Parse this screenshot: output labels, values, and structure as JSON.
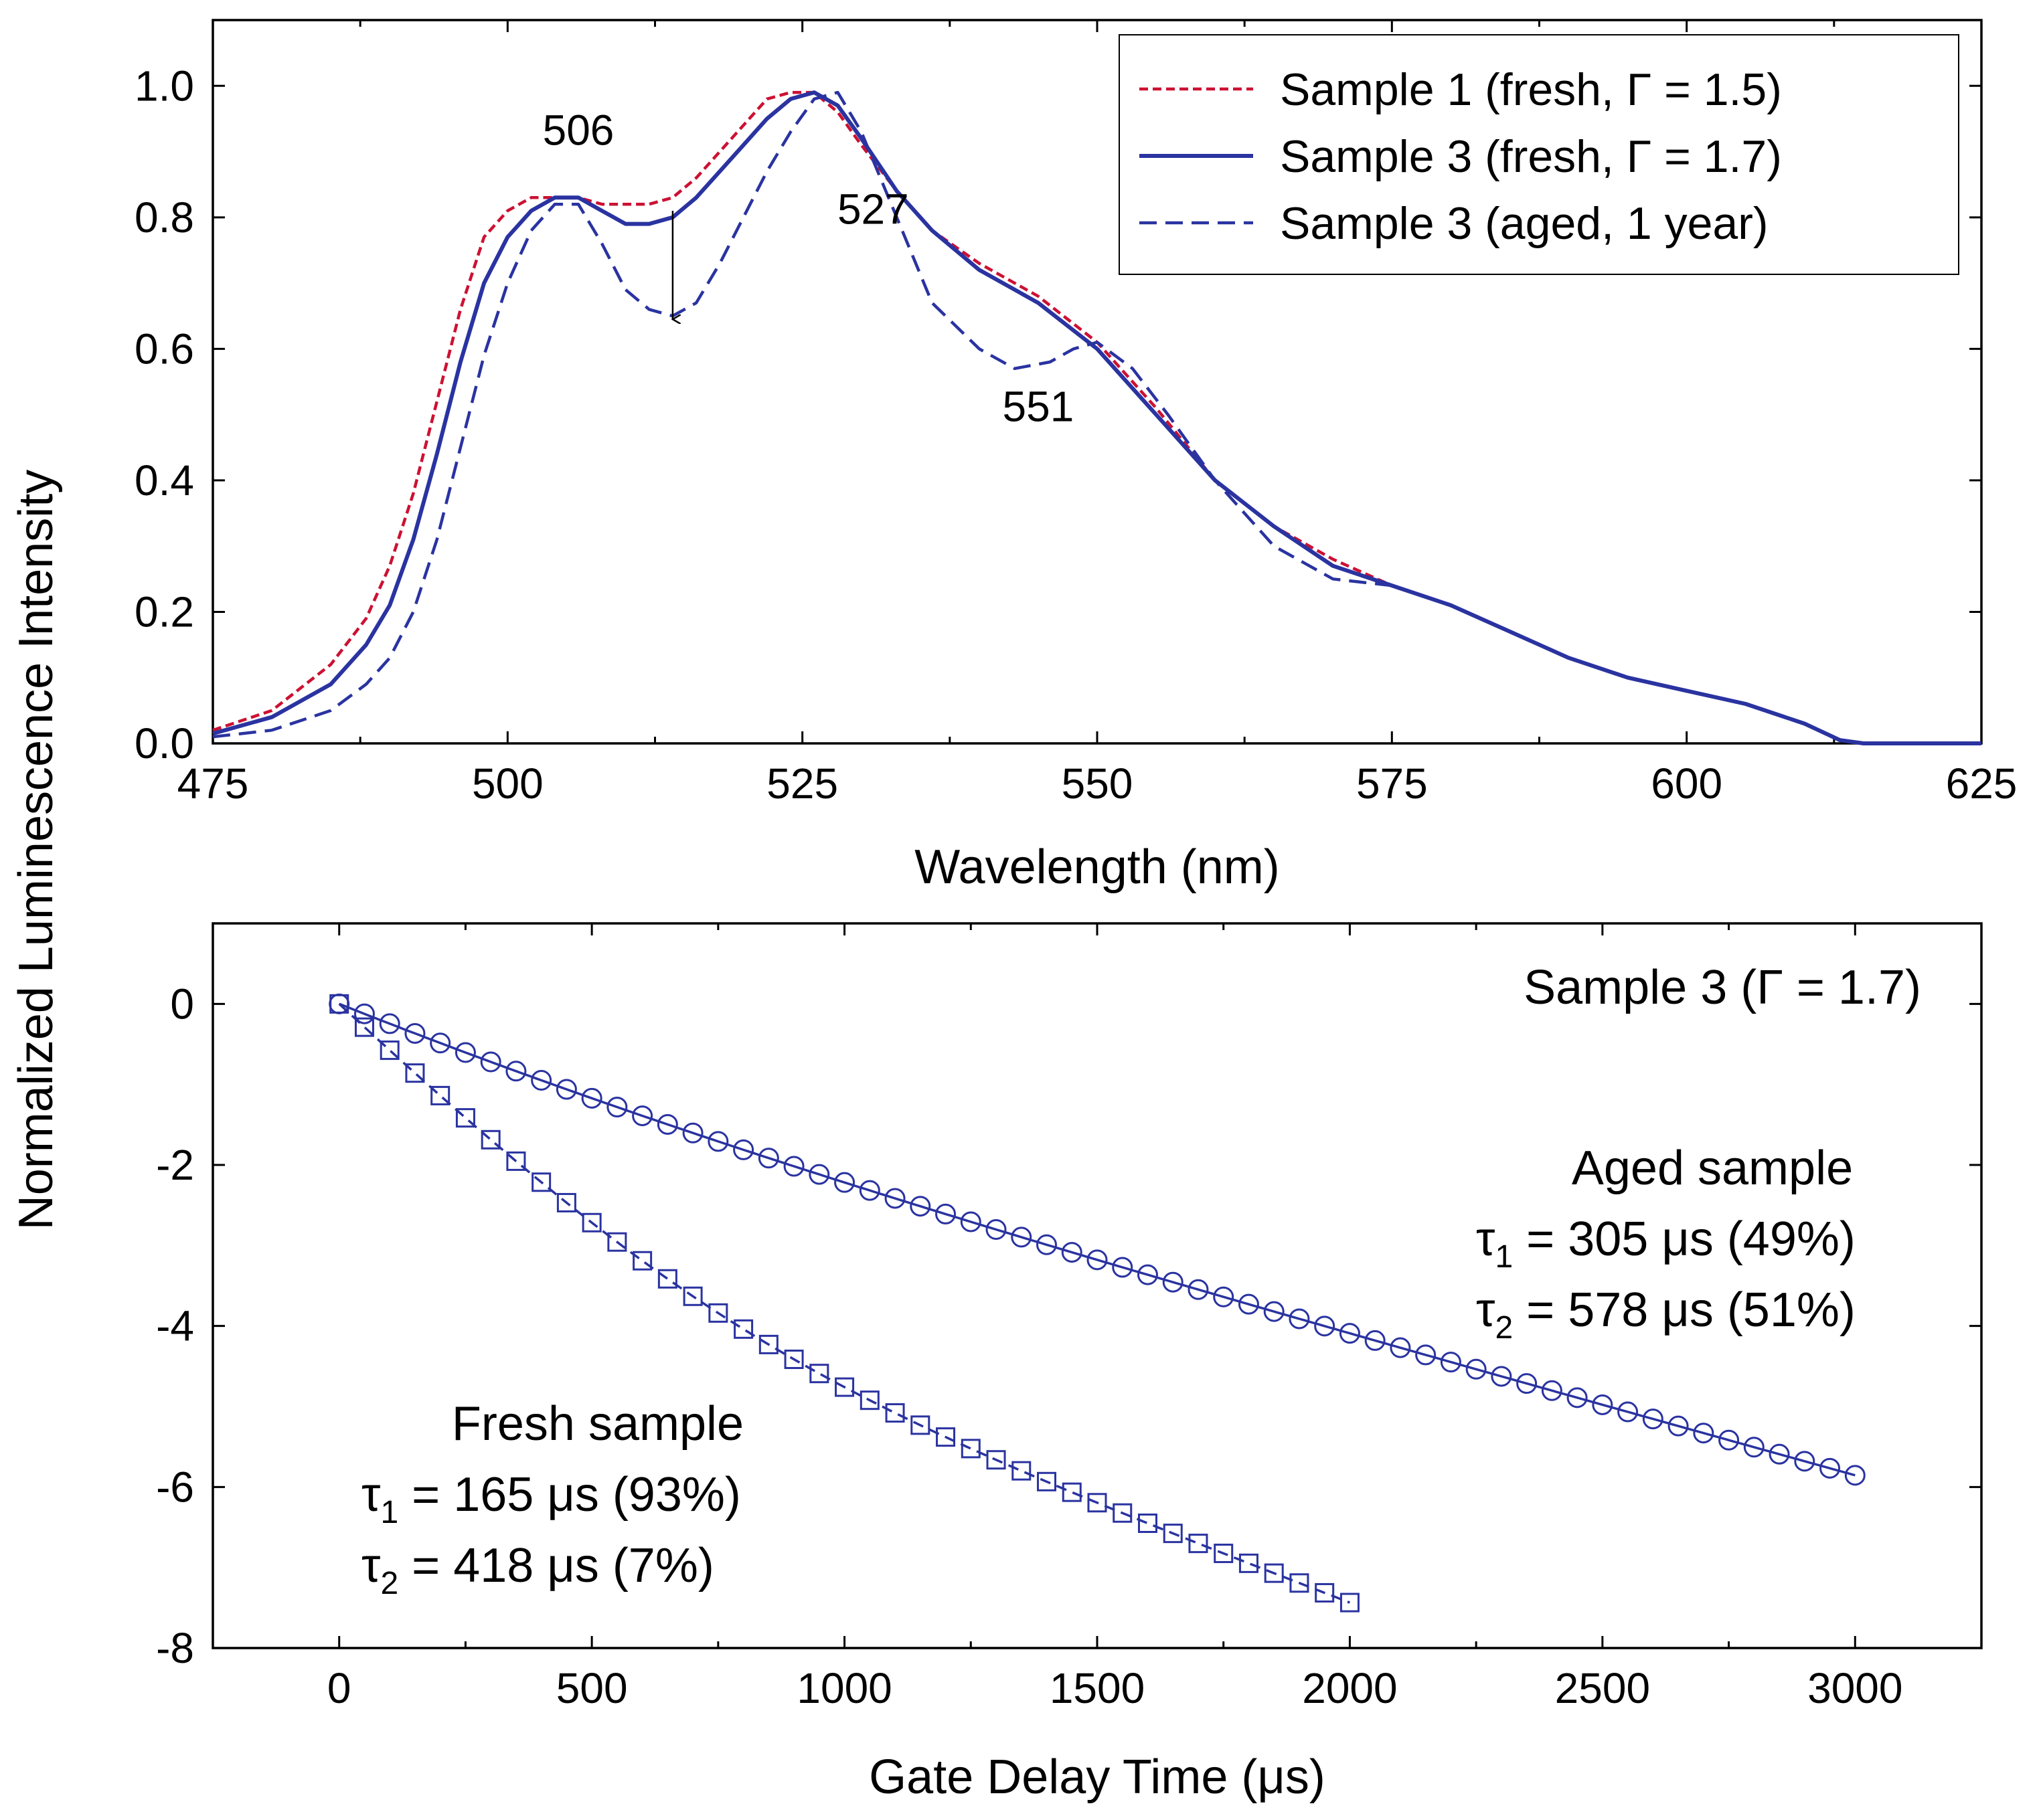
{
  "colors": {
    "sample1": "#cc1133",
    "sample3": "#2a33a0",
    "axis": "#000000",
    "background": "#ffffff"
  },
  "shared_ylabel": "Normalized Luminescence Intensity",
  "chart_data": [
    {
      "type": "line",
      "title": "",
      "xlabel": "Wavelength (nm)",
      "ylabel": "Normalized Luminescence Intensity",
      "xlim": [
        475,
        625
      ],
      "ylim": [
        0.0,
        1.1
      ],
      "xticks": [
        475,
        500,
        525,
        550,
        575,
        600,
        625
      ],
      "xtick_labels": [
        "475",
        "500",
        "525",
        "550",
        "575",
        "600",
        "625"
      ],
      "yticks": [
        0.0,
        0.2,
        0.4,
        0.6,
        0.8,
        1.0
      ],
      "ytick_labels": [
        "0.0",
        "0.2",
        "0.4",
        "0.6",
        "0.8",
        "1.0"
      ],
      "legend_position": "top-right",
      "series": [
        {
          "name": "Sample 1 (fresh, Γ = 1.5)",
          "style": "short-dash",
          "color": "#cc1133",
          "x": [
            475,
            480,
            485,
            488,
            490,
            492,
            494,
            496,
            498,
            500,
            502,
            504,
            506,
            508,
            510,
            512,
            514,
            516,
            518,
            520,
            522,
            524,
            526,
            528,
            530,
            533,
            536,
            540,
            545,
            550,
            555,
            560,
            565,
            570,
            575,
            580,
            585,
            590,
            595,
            600,
            605,
            610,
            613,
            615,
            620,
            625
          ],
          "y": [
            0.02,
            0.05,
            0.12,
            0.19,
            0.27,
            0.38,
            0.52,
            0.66,
            0.77,
            0.81,
            0.83,
            0.83,
            0.83,
            0.82,
            0.82,
            0.82,
            0.83,
            0.86,
            0.9,
            0.94,
            0.98,
            0.99,
            0.99,
            0.96,
            0.91,
            0.84,
            0.78,
            0.73,
            0.68,
            0.61,
            0.51,
            0.4,
            0.33,
            0.28,
            0.24,
            0.21,
            0.17,
            0.13,
            0.1,
            0.08,
            0.06,
            0.03,
            0.005,
            0.0,
            0.0,
            0.0
          ]
        },
        {
          "name": "Sample 3 (fresh, Γ = 1.7)",
          "style": "solid",
          "color": "#2a33a0",
          "x": [
            475,
            480,
            485,
            488,
            490,
            492,
            494,
            496,
            498,
            500,
            502,
            504,
            506,
            508,
            510,
            512,
            514,
            516,
            518,
            520,
            522,
            524,
            526,
            528,
            530,
            533,
            536,
            540,
            545,
            550,
            555,
            560,
            565,
            570,
            575,
            580,
            585,
            590,
            595,
            600,
            605,
            610,
            613,
            615,
            620,
            625
          ],
          "y": [
            0.015,
            0.04,
            0.09,
            0.15,
            0.21,
            0.31,
            0.44,
            0.58,
            0.7,
            0.77,
            0.81,
            0.83,
            0.83,
            0.81,
            0.79,
            0.79,
            0.8,
            0.83,
            0.87,
            0.91,
            0.95,
            0.98,
            0.99,
            0.97,
            0.92,
            0.84,
            0.78,
            0.72,
            0.67,
            0.6,
            0.5,
            0.4,
            0.33,
            0.27,
            0.24,
            0.21,
            0.17,
            0.13,
            0.1,
            0.08,
            0.06,
            0.03,
            0.005,
            0.0,
            0.0,
            0.0
          ]
        },
        {
          "name": "Sample 3 (aged, 1 year)",
          "style": "long-dash",
          "color": "#2a33a0",
          "x": [
            475,
            480,
            485,
            488,
            490,
            492,
            494,
            496,
            498,
            500,
            502,
            504,
            506,
            508,
            510,
            512,
            514,
            516,
            518,
            520,
            522,
            524,
            526,
            528,
            530,
            533,
            536,
            540,
            543,
            546,
            548,
            550,
            553,
            556,
            560,
            565,
            570,
            575,
            580,
            585,
            590,
            595,
            600,
            605,
            610,
            613,
            615,
            620,
            625
          ],
          "y": [
            0.01,
            0.02,
            0.05,
            0.09,
            0.13,
            0.2,
            0.31,
            0.45,
            0.59,
            0.7,
            0.78,
            0.82,
            0.82,
            0.76,
            0.69,
            0.66,
            0.65,
            0.67,
            0.73,
            0.8,
            0.87,
            0.93,
            0.98,
            0.99,
            0.93,
            0.8,
            0.67,
            0.6,
            0.57,
            0.58,
            0.6,
            0.61,
            0.57,
            0.5,
            0.4,
            0.3,
            0.25,
            0.24,
            0.21,
            0.17,
            0.13,
            0.1,
            0.08,
            0.06,
            0.03,
            0.005,
            0.0,
            0.0,
            0.0
          ]
        }
      ],
      "annotations": [
        {
          "text": "506",
          "x": 506,
          "y": 0.91
        },
        {
          "text": "527",
          "x": 531,
          "y": 0.79
        },
        {
          "text": "551",
          "x": 545,
          "y": 0.49
        }
      ],
      "arrow": {
        "x": 514,
        "y_from": 0.81,
        "y_to": 0.645
      }
    },
    {
      "type": "scatter",
      "title": "Sample 3 (Γ = 1.7)",
      "xlabel": "Gate Delay Time (μs)",
      "ylabel": "Normalized Luminescence Intensity",
      "xlim": [
        -250,
        3250
      ],
      "ylim": [
        -8,
        1
      ],
      "xticks": [
        0,
        500,
        1000,
        1500,
        2000,
        2500,
        3000
      ],
      "xtick_labels": [
        "0",
        "500",
        "1000",
        "1500",
        "2000",
        "2500",
        "3000"
      ],
      "yticks": [
        0,
        -2,
        -4,
        -6,
        -8
      ],
      "ytick_labels": [
        "0",
        "-2",
        "-4",
        "-6",
        "-8"
      ],
      "series": [
        {
          "name": "Aged sample",
          "marker": "circle",
          "fit_style": "solid",
          "x_start": 0,
          "x_step": 50,
          "x_end": 3000,
          "tau1": 305,
          "a1": 0.49,
          "tau2": 578,
          "a2": 0.51
        },
        {
          "name": "Fresh sample",
          "marker": "square",
          "fit_style": "dash",
          "x_start": 0,
          "x_step": 50,
          "x_end": 2000,
          "tau1": 165,
          "a1": 0.93,
          "tau2": 418,
          "a2": 0.07
        }
      ],
      "labels": {
        "aged_title": "Aged sample",
        "aged_t1_value": " = 305 μs (49%)",
        "aged_t2_value": " = 578 μs (51%)",
        "fresh_title": "Fresh sample",
        "fresh_t1_value": " = 165 μs (93%)",
        "fresh_t2_value": " = 418 μs (7%)",
        "tau_symbol": "τ",
        "sub1": "1",
        "sub2": "2"
      }
    }
  ]
}
